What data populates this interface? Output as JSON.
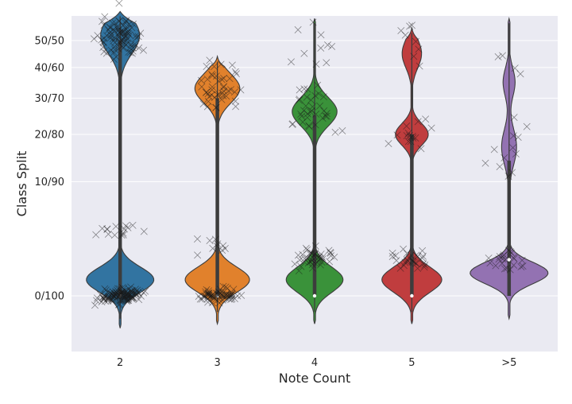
{
  "chart_data": {
    "type": "violin",
    "xlabel": "Note Count",
    "ylabel": "Class Split",
    "x_categories": [
      "2",
      "3",
      "4",
      "5",
      ">5"
    ],
    "y_ticks": [
      {
        "value": 0.0,
        "label": "0/100"
      },
      {
        "value": 0.1,
        "label": "10/90"
      },
      {
        "value": 0.2,
        "label": "20/80"
      },
      {
        "value": 0.3,
        "label": "30/70"
      },
      {
        "value": 0.4,
        "label": "40/60"
      },
      {
        "value": 0.5,
        "label": "50/50"
      }
    ],
    "y_scale": "sqrt",
    "ylim": [
      -0.02,
      0.74
    ],
    "grid": true,
    "background": "#eaeaf2",
    "series": [
      {
        "category": "2",
        "color": "#3274a1",
        "violin_min": -0.008,
        "violin_max": 0.62,
        "modes": [
          {
            "y": 0.002,
            "width": 0.45,
            "spread": 0.035
          },
          {
            "y": 0.52,
            "width": 0.26,
            "spread": 0.05
          }
        ],
        "box": {
          "q1": 0.0,
          "median": 0.0,
          "q3": 0.5
        },
        "points": [
          {
            "y": 0.0,
            "n": 130,
            "spread": 0.01
          },
          {
            "y": 0.51,
            "n": 90,
            "spread": 0.025
          },
          {
            "y": 0.03,
            "n": 15,
            "spread": 0.02
          },
          {
            "y": 0.6,
            "n": 6,
            "spread": 0.02
          }
        ]
      },
      {
        "category": "3",
        "color": "#e1812c",
        "violin_min": -0.006,
        "violin_max": 0.44,
        "modes": [
          {
            "y": 0.002,
            "width": 0.43,
            "spread": 0.035
          },
          {
            "y": 0.33,
            "width": 0.3,
            "spread": 0.04
          }
        ],
        "box": {
          "q1": 0.0,
          "median": 0.0,
          "q3": 0.3
        },
        "points": [
          {
            "y": 0.0,
            "n": 70,
            "spread": 0.01
          },
          {
            "y": 0.34,
            "n": 45,
            "spread": 0.03
          },
          {
            "y": 0.02,
            "n": 10,
            "spread": 0.02
          }
        ]
      },
      {
        "category": "4",
        "color": "#3a923a",
        "violin_min": -0.006,
        "violin_max": 0.59,
        "modes": [
          {
            "y": 0.002,
            "width": 0.38,
            "spread": 0.035
          },
          {
            "y": 0.26,
            "width": 0.3,
            "spread": 0.04
          }
        ],
        "box": {
          "q1": 0.0,
          "median": 0.0,
          "q3": 0.25
        },
        "points": [
          {
            "y": 0.01,
            "n": 45,
            "spread": 0.015
          },
          {
            "y": 0.26,
            "n": 35,
            "spread": 0.04
          },
          {
            "y": 0.5,
            "n": 10,
            "spread": 0.05
          }
        ]
      },
      {
        "category": "5",
        "color": "#c03d3e",
        "violin_min": -0.006,
        "violin_max": 0.55,
        "modes": [
          {
            "y": 0.002,
            "width": 0.4,
            "spread": 0.035
          },
          {
            "y": 0.2,
            "width": 0.22,
            "spread": 0.03
          },
          {
            "y": 0.45,
            "width": 0.13,
            "spread": 0.04
          }
        ],
        "box": {
          "q1": 0.0,
          "median": 0.0,
          "q3": 0.2
        },
        "points": [
          {
            "y": 0.01,
            "n": 28,
            "spread": 0.015
          },
          {
            "y": 0.2,
            "n": 16,
            "spread": 0.02
          },
          {
            "y": 0.48,
            "n": 8,
            "spread": 0.04
          }
        ]
      },
      {
        "category": ">5",
        "color": "#9372b2",
        "violin_min": -0.004,
        "violin_max": 0.59,
        "modes": [
          {
            "y": 0.004,
            "width": 0.52,
            "spread": 0.03
          },
          {
            "y": 0.17,
            "width": 0.1,
            "spread": 0.05
          },
          {
            "y": 0.35,
            "width": 0.08,
            "spread": 0.04
          }
        ],
        "box": {
          "q1": 0.0,
          "median": 0.01,
          "q3": 0.14
        },
        "points": [
          {
            "y": 0.01,
            "n": 22,
            "spread": 0.015
          },
          {
            "y": 0.17,
            "n": 10,
            "spread": 0.05
          },
          {
            "y": 0.34,
            "n": 6,
            "spread": 0.05
          }
        ]
      }
    ]
  }
}
